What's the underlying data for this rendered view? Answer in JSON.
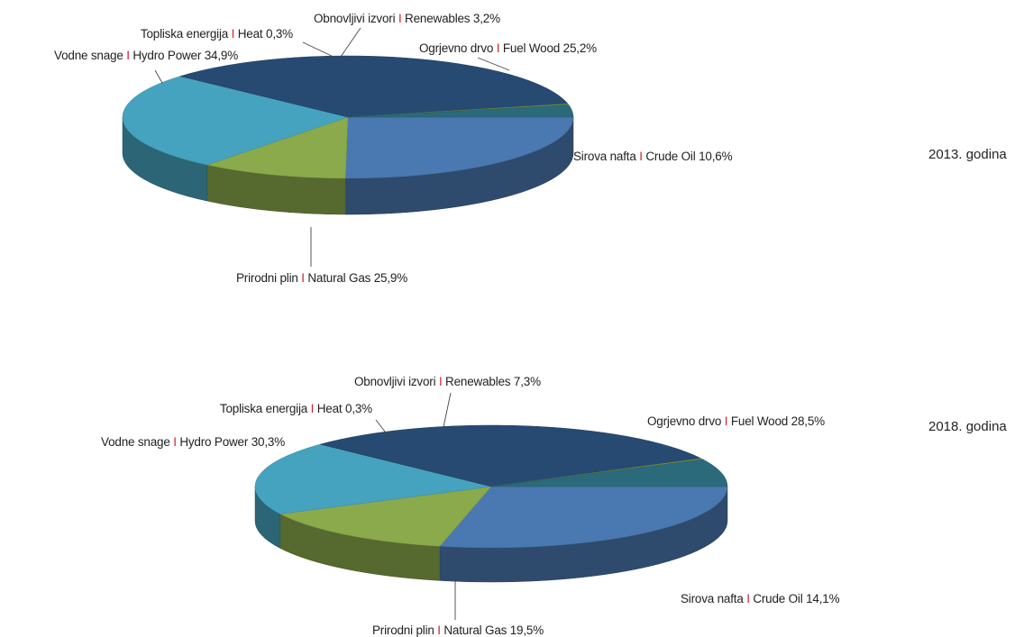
{
  "chart_data": [
    {
      "type": "pie",
      "title": "2013. godina",
      "separator": "I",
      "slices": [
        {
          "name_hr": "Ogrjevno drvo",
          "name_en": "Fuel Wood",
          "value": 25.2,
          "value_label": "25,2%",
          "color": "#4a78b0"
        },
        {
          "name_hr": "Sirova nafta",
          "name_en": "Crude Oil",
          "value": 10.6,
          "value_label": "10,6%",
          "color": "#8aaa4c"
        },
        {
          "name_hr": "Prirodni plin",
          "name_en": "Natural Gas",
          "value": 25.9,
          "value_label": "25,9%",
          "color": "#46a3bf"
        },
        {
          "name_hr": "Vodne snage",
          "name_en": "Hydro Power",
          "value": 34.9,
          "value_label": "34,9%",
          "color": "#274a72"
        },
        {
          "name_hr": "Topliska energija",
          "name_en": "Heat",
          "value": 0.3,
          "value_label": "0,3%",
          "color": "#7a8f3a"
        },
        {
          "name_hr": "Obnovljivi izvori",
          "name_en": "Renewables",
          "value": 3.2,
          "value_label": "3,2%",
          "color": "#2a6a7a"
        }
      ]
    },
    {
      "type": "pie",
      "title": "2018. godina",
      "separator": "I",
      "slices": [
        {
          "name_hr": "Ogrjevno drvo",
          "name_en": "Fuel Wood",
          "value": 28.5,
          "value_label": "28,5%",
          "color": "#4a78b0"
        },
        {
          "name_hr": "Sirova nafta",
          "name_en": "Crude Oil",
          "value": 14.1,
          "value_label": "14,1%",
          "color": "#8aaa4c"
        },
        {
          "name_hr": "Prirodni plin",
          "name_en": "Natural Gas",
          "value": 19.5,
          "value_label": "19,5%",
          "color": "#46a3bf"
        },
        {
          "name_hr": "Vodne snage",
          "name_en": "Hydro Power",
          "value": 30.3,
          "value_label": "30,3%",
          "color": "#274a72"
        },
        {
          "name_hr": "Topliska energija",
          "name_en": "Heat",
          "value": 0.3,
          "value_label": "0,3%",
          "color": "#7a8f3a"
        },
        {
          "name_hr": "Obnovljivi izvori",
          "name_en": "Renewables",
          "value": 7.3,
          "value_label": "7,3%",
          "color": "#2a6a7a"
        }
      ]
    }
  ]
}
